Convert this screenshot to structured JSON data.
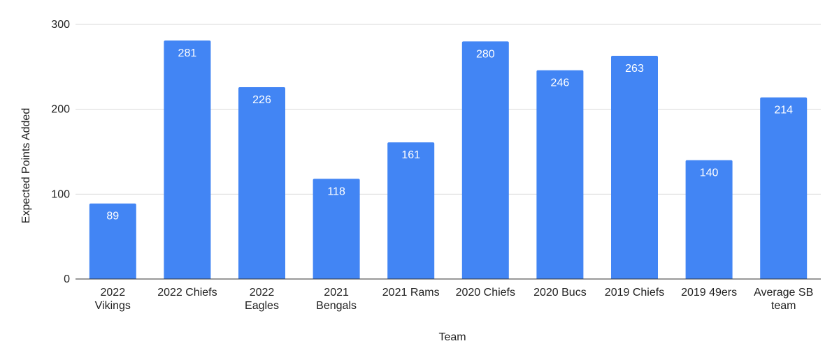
{
  "chart_data": {
    "type": "bar",
    "title": "",
    "xlabel": "Team",
    "ylabel": "Expected Points Added",
    "ylim": [
      0,
      300
    ],
    "yticks": [
      0,
      100,
      200,
      300
    ],
    "grid": true,
    "legend": "none",
    "bar_color": "#4285f4",
    "categories": [
      [
        "2022",
        "Vikings"
      ],
      [
        "2022 Chiefs"
      ],
      [
        "2022",
        "Eagles"
      ],
      [
        "2021",
        "Bengals"
      ],
      [
        "2021 Rams"
      ],
      [
        "2020 Chiefs"
      ],
      [
        "2020 Bucs"
      ],
      [
        "2019 Chiefs"
      ],
      [
        "2019 49ers"
      ],
      [
        "Average SB",
        "team"
      ]
    ],
    "values": [
      89,
      281,
      226,
      118,
      161,
      280,
      246,
      263,
      140,
      214
    ]
  }
}
